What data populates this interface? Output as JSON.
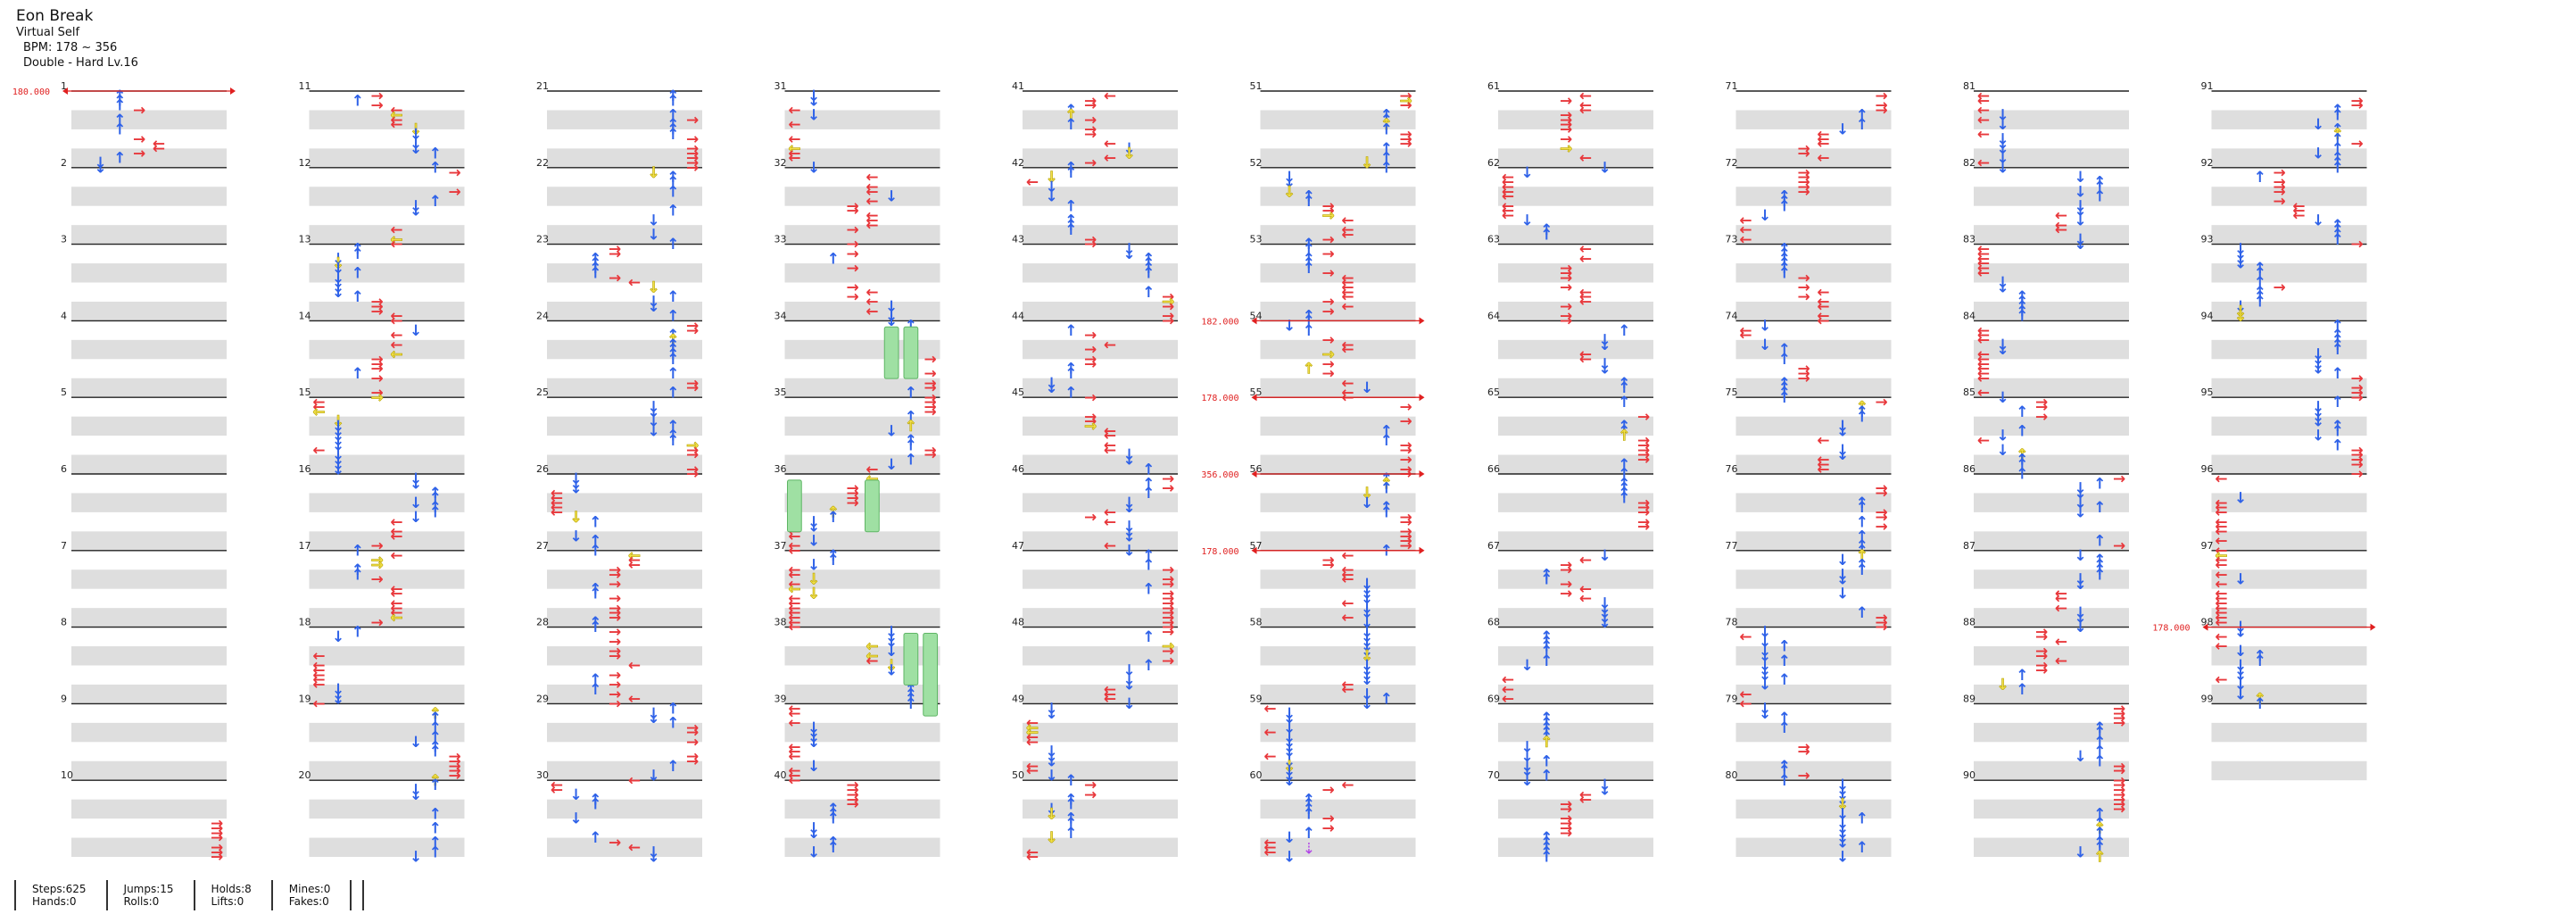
{
  "song": {
    "title": "Eon Break",
    "artist": "Virtual Self",
    "bpm_display": "BPM: 178 ~ 356",
    "difficulty": "Double - Hard Lv.16"
  },
  "stats": {
    "steps": "Steps:625",
    "hands": "Hands:0",
    "jumps": "Jumps:15",
    "rolls": "Rolls:0",
    "holds": "Holds:8",
    "lifts": "Lifts:0",
    "mines": "Mines:0",
    "fakes": "Fakes:0"
  },
  "colors": {
    "left_right_arrow": "#e8383c",
    "down_up_arrow": "#2f62e8",
    "jump_arrow": "#f2e14a",
    "hold_body": "#9fe0a3",
    "mine_or_special": "#b040e8",
    "bpm_change_line": "#e02020",
    "row_shade": "#dedede"
  },
  "chart_data": {
    "type": "step-chart",
    "total_measures": 99,
    "measures_per_column": 10,
    "bpm_changes": [
      {
        "measure": 1,
        "bpm": "180.000"
      },
      {
        "measure": 54,
        "bpm": "182.000"
      },
      {
        "measure": 55,
        "bpm": "178.000"
      },
      {
        "measure": 56,
        "bpm": "356.000"
      },
      {
        "measure": 57,
        "bpm": "178.000"
      },
      {
        "measure": 98,
        "bpm": "178.000"
      }
    ],
    "measure_labels": [
      "1",
      "2",
      "3",
      "4",
      "5",
      "6",
      "7",
      "8",
      "9",
      "10",
      "11",
      "12",
      "13",
      "14",
      "15",
      "16",
      "17",
      "18",
      "19",
      "20",
      "21",
      "22",
      "23",
      "24",
      "25",
      "26",
      "27",
      "28",
      "29",
      "30",
      "31",
      "32",
      "33",
      "34",
      "35",
      "36",
      "37",
      "38",
      "39",
      "40",
      "41",
      "42",
      "43",
      "44",
      "45",
      "46",
      "47",
      "48",
      "49",
      "50",
      "51",
      "52",
      "53",
      "54",
      "55",
      "56",
      "57",
      "58",
      "59",
      "60",
      "61",
      "62",
      "63",
      "64",
      "65",
      "66",
      "67",
      "68",
      "69",
      "70",
      "71",
      "72",
      "73",
      "74",
      "75",
      "76",
      "77",
      "78",
      "79",
      "80",
      "81",
      "82",
      "83",
      "84",
      "85",
      "86",
      "87",
      "88",
      "89",
      "90",
      "91",
      "92",
      "93",
      "94",
      "95",
      "96",
      "97",
      "98",
      "99"
    ]
  }
}
